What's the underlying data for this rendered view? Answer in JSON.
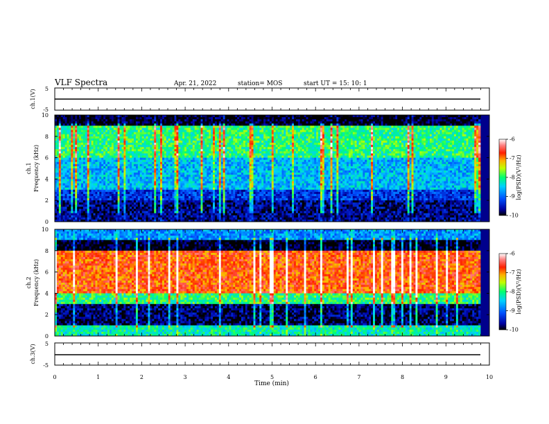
{
  "header": {
    "title": "VLF Spectra",
    "date": "Apr. 21, 2022",
    "station": "station= MOS",
    "start": "start  UT =   15: 10: 1"
  },
  "colorbar": {
    "ticks": [
      "-6",
      "-7",
      "-8",
      "-9",
      "-10"
    ],
    "label": "log(PSD)(V²/Hz)"
  },
  "chart_data": [
    {
      "type": "line",
      "title": "",
      "ylabel": "ch.1(V)",
      "ylim": [
        -5,
        5
      ],
      "yticks": [
        "5",
        "-5"
      ],
      "x": [
        0,
        1,
        2,
        3,
        4,
        5,
        6,
        7,
        8,
        9,
        9.8
      ],
      "series": [
        {
          "values": [
            -0.5,
            -0.5,
            -0.5,
            -0.5,
            -0.5,
            -0.5,
            -0.5,
            -0.5,
            -0.5,
            -0.5,
            -0.5
          ]
        }
      ]
    },
    {
      "type": "heatmap",
      "channel": "ch.1",
      "ylabel": "Frequency (kHz)",
      "ylim": [
        0,
        10
      ],
      "yticks": [
        "0",
        "2",
        "4",
        "6",
        "8",
        "10"
      ],
      "color_range": [
        -10,
        -6
      ],
      "band_summary": [
        {
          "freq_khz": [
            9,
            10
          ],
          "level": -10
        },
        {
          "freq_khz": [
            6,
            9
          ],
          "level": -8
        },
        {
          "freq_khz": [
            3,
            6
          ],
          "level": -8.6
        },
        {
          "freq_khz": [
            2,
            3
          ],
          "level": -9.3
        },
        {
          "freq_khz": [
            0,
            2
          ],
          "level": -9.7
        }
      ]
    },
    {
      "type": "heatmap",
      "channel": "ch.2",
      "ylabel": "Frequency (kHz)",
      "ylim": [
        0,
        10
      ],
      "yticks": [
        "0",
        "2",
        "4",
        "6",
        "8",
        "10"
      ],
      "color_range": [
        -10,
        -6
      ],
      "band_summary": [
        {
          "freq_khz": [
            9,
            10
          ],
          "level": -8.8
        },
        {
          "freq_khz": [
            4,
            8
          ],
          "level": -6.8
        },
        {
          "freq_khz": [
            3,
            4
          ],
          "level": -8
        },
        {
          "freq_khz": [
            1,
            3
          ],
          "level": -9.8
        },
        {
          "freq_khz": [
            0,
            1
          ],
          "level": -8.2
        }
      ]
    },
    {
      "type": "line",
      "title": "",
      "ylabel": "ch.3(V)",
      "xlabel": "Time (min)",
      "xlim": [
        0,
        10
      ],
      "xticks": [
        "0",
        "1",
        "2",
        "3",
        "4",
        "5",
        "6",
        "7",
        "8",
        "9",
        "10"
      ],
      "ylim": [
        -5,
        5
      ],
      "yticks": [
        "5",
        "-5"
      ],
      "x": [
        0,
        1,
        2,
        3,
        4,
        5,
        6,
        7,
        8,
        9,
        9.8
      ],
      "series": [
        {
          "values": [
            -0.5,
            -0.5,
            -0.5,
            -0.5,
            -0.5,
            -0.5,
            -0.5,
            -0.5,
            -0.5,
            -0.5,
            -0.5
          ]
        }
      ]
    }
  ]
}
